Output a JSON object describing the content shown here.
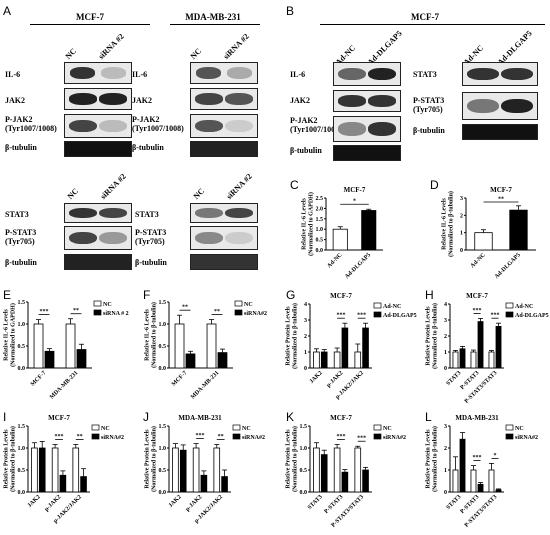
{
  "panel_letters": {
    "A": "A",
    "B": "B",
    "C": "C",
    "D": "D",
    "E": "E",
    "F": "F",
    "G": "G",
    "H": "H",
    "I": "I",
    "J": "J",
    "K": "K",
    "L": "L"
  },
  "blots_A": {
    "title_left": "MCF-7",
    "title_right": "MDA-MB-231",
    "lanes": [
      "NC",
      "siRNA #2"
    ],
    "rows": [
      "IL-6",
      "JAK2",
      "P-JAK2\n(Tyr1007/1008)",
      "β-tubulin"
    ],
    "rows2": [
      "STAT3",
      "P-STAT3\n(Tyr705)",
      "β-tubulin"
    ]
  },
  "blots_B": {
    "title": "MCF-7",
    "lanes": [
      "Ad-NC",
      "Ad-DLGAP5"
    ],
    "rows": [
      "IL-6",
      "JAK2",
      "P-JAK2\n(Tyr1007/1008)",
      "β-tubulin"
    ],
    "rows2": [
      "STAT3",
      "P-STAT3\n(Tyr705)",
      "β-tubulin"
    ]
  },
  "chart_data": [
    {
      "id": "C",
      "type": "bar",
      "title": "MCF-7",
      "ylabel": "Relative IL-6 Levels\n(Normalized to GAPDH)",
      "categories": [
        "Ad-NC",
        "Ad-DLGAP5"
      ],
      "values": [
        1.0,
        1.9
      ],
      "errors": [
        0.12,
        0.06
      ],
      "ylim": [
        0,
        2.5
      ],
      "yticks": [
        "0.0",
        "0.5",
        "1.0",
        "1.5",
        "2.0",
        "2.5"
      ],
      "sig": [
        "*"
      ],
      "colors": [
        "#ffffff",
        "#000000"
      ]
    },
    {
      "id": "D",
      "type": "bar",
      "title": "MCF-7",
      "ylabel": "Relative IL-6 Levels\n(Normalized to β-tubulin)",
      "categories": [
        "Ad-NC",
        "Ad-DLGAP5"
      ],
      "values": [
        1.0,
        2.3
      ],
      "errors": [
        0.17,
        0.25
      ],
      "ylim": [
        0,
        3
      ],
      "yticks": [
        "0",
        "1",
        "2",
        "3"
      ],
      "sig": [
        "**"
      ],
      "colors": [
        "#ffffff",
        "#000000"
      ]
    },
    {
      "id": "E",
      "type": "bar",
      "title": "",
      "ylabel": "Relative IL-6 Levels\n(Normalized to GAPDH)",
      "categories": [
        "MCF-7",
        "MDA-MB-231"
      ],
      "series": [
        {
          "name": "NC",
          "values": [
            1.0,
            1.0
          ],
          "errors": [
            0.1,
            0.12
          ]
        },
        {
          "name": "siRNA # 2",
          "values": [
            0.38,
            0.42
          ],
          "errors": [
            0.06,
            0.12
          ]
        }
      ],
      "ylim": [
        0,
        1.5
      ],
      "yticks": [
        "0.0",
        "0.5",
        "1.0",
        "1.5"
      ],
      "sig": [
        "***",
        "**"
      ]
    },
    {
      "id": "F",
      "type": "bar",
      "title": "",
      "ylabel": "Relative IL-6 Levels\n(Normalized to β-tubulin)",
      "categories": [
        "MCF-7",
        "MDA-MB-231"
      ],
      "series": [
        {
          "name": "NC",
          "values": [
            1.0,
            1.0
          ],
          "errors": [
            0.2,
            0.1
          ]
        },
        {
          "name": "siRNA#2",
          "values": [
            0.32,
            0.35
          ],
          "errors": [
            0.06,
            0.08
          ]
        }
      ],
      "ylim": [
        0,
        1.5
      ],
      "yticks": [
        "0.0",
        "0.5",
        "1.0",
        "1.5"
      ],
      "sig": [
        "**",
        "**"
      ]
    },
    {
      "id": "G",
      "type": "bar",
      "title": "MCF-7",
      "ylabel": "Relative Protein Levels\n(Normalized to β-tubulin)",
      "categories": [
        "JAK2",
        "p-JAK2",
        "p-JAK2/JAK2"
      ],
      "series": [
        {
          "name": "Ad-NC",
          "values": [
            1.0,
            1.0,
            1.0
          ],
          "errors": [
            0.2,
            0.25,
            0.5
          ]
        },
        {
          "name": "Ad-DLGAP5",
          "values": [
            1.0,
            2.5,
            2.5
          ],
          "errors": [
            0.15,
            0.3,
            0.3
          ]
        }
      ],
      "ylim": [
        0,
        4
      ],
      "yticks": [
        "0",
        "1",
        "2",
        "3",
        "4"
      ],
      "sig": [
        "",
        "***",
        "***"
      ]
    },
    {
      "id": "H",
      "type": "bar",
      "title": "MCF-7",
      "ylabel": "Relative Protein Levels\n(Normalized to β-tubulin)",
      "categories": [
        "STAT3",
        "P-STAT3",
        "P-STAT3/STAT3"
      ],
      "series": [
        {
          "name": "Ad-NC",
          "values": [
            1.0,
            1.0,
            1.0
          ],
          "errors": [
            0.1,
            0.12,
            0.1
          ]
        },
        {
          "name": "Ad-DLGAP5",
          "values": [
            1.2,
            2.9,
            2.6
          ],
          "errors": [
            0.15,
            0.2,
            0.2
          ]
        }
      ],
      "ylim": [
        0,
        4
      ],
      "yticks": [
        "0",
        "1",
        "2",
        "3",
        "4"
      ],
      "sig": [
        "",
        "***",
        "***"
      ]
    },
    {
      "id": "I",
      "type": "bar",
      "title": "MCF-7",
      "ylabel": "Relative Protein Levels\n(Normalized to β-tubulin)",
      "categories": [
        "JAK2",
        "p-JAK2",
        "p-JAK2/JAK2"
      ],
      "series": [
        {
          "name": "NC",
          "values": [
            1.0,
            1.0,
            1.0
          ],
          "errors": [
            0.12,
            0.08,
            0.08
          ]
        },
        {
          "name": "siRNA#2",
          "values": [
            1.0,
            0.38,
            0.35
          ],
          "errors": [
            0.15,
            0.1,
            0.18
          ]
        }
      ],
      "ylim": [
        0,
        1.5
      ],
      "yticks": [
        "0.0",
        "0.5",
        "1.0",
        "1.5"
      ],
      "sig": [
        "",
        "***",
        "**"
      ]
    },
    {
      "id": "J",
      "type": "bar",
      "title": "MDA-MB-231",
      "ylabel": "Relative Protein Levels\n(Normalized to β-tubulin)",
      "categories": [
        "JAK2",
        "p-JAK2",
        "p-JAK2/JAK2"
      ],
      "series": [
        {
          "name": "NC",
          "values": [
            1.0,
            1.0,
            1.0
          ],
          "errors": [
            0.1,
            0.1,
            0.08
          ]
        },
        {
          "name": "siRNA#2",
          "values": [
            0.95,
            0.38,
            0.35
          ],
          "errors": [
            0.12,
            0.1,
            0.15
          ]
        }
      ],
      "ylim": [
        0,
        1.5
      ],
      "yticks": [
        "0.0",
        "0.5",
        "1.0",
        "1.5"
      ],
      "sig": [
        "",
        "***",
        "**"
      ]
    },
    {
      "id": "K",
      "type": "bar",
      "title": "MCF-7",
      "ylabel": "Relative Protein Levels\n(Normalized to β-tubulin)",
      "categories": [
        "STAT3",
        "P-STAT3",
        "P-STAT3/STAT3"
      ],
      "series": [
        {
          "name": "NC",
          "values": [
            1.0,
            1.0,
            1.0
          ],
          "errors": [
            0.12,
            0.08,
            0.04
          ]
        },
        {
          "name": "siRNA#2",
          "values": [
            0.85,
            0.45,
            0.5
          ],
          "errors": [
            0.1,
            0.06,
            0.06
          ]
        }
      ],
      "ylim": [
        0,
        1.5
      ],
      "yticks": [
        "0.0",
        "0.5",
        "1.0",
        "1.5"
      ],
      "sig": [
        "",
        "***",
        "***"
      ]
    },
    {
      "id": "L",
      "type": "bar",
      "title": "MDA-MB-231",
      "ylabel": "Relative Protein Levels\n(Normalized to β-tubulin)",
      "categories": [
        "STAT3",
        "P-STAT3",
        "P-STAT3/STAT3"
      ],
      "series": [
        {
          "name": "NC",
          "values": [
            1.0,
            1.0,
            1.0
          ],
          "errors": [
            0.6,
            0.2,
            0.3
          ]
        },
        {
          "name": "siRNA#2",
          "values": [
            2.4,
            0.35,
            0.1
          ],
          "errors": [
            0.3,
            0.08,
            0.04
          ]
        }
      ],
      "ylim": [
        0,
        3
      ],
      "yticks": [
        "0",
        "1",
        "2",
        "3"
      ],
      "sig": [
        "",
        "***",
        "*"
      ]
    }
  ]
}
